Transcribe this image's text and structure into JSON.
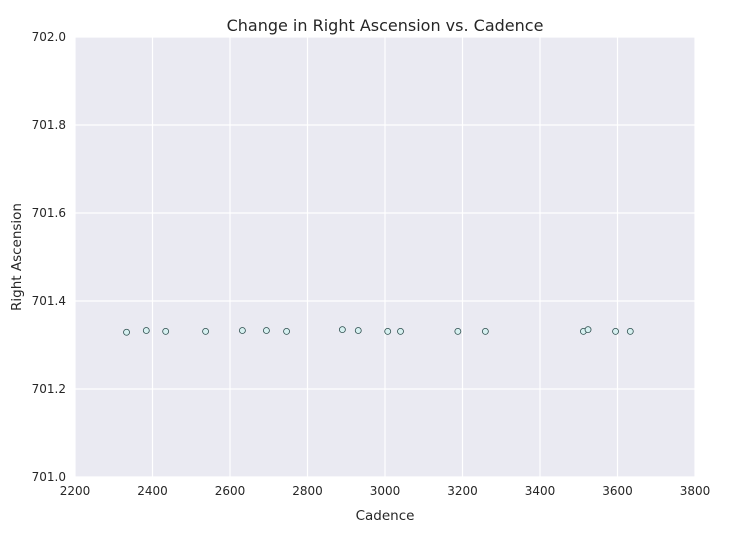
{
  "chart_data": {
    "type": "scatter",
    "title": "Change in Right Ascension vs. Cadence",
    "xlabel": "Cadence",
    "ylabel": "Right Ascension",
    "xlim": [
      2200,
      3800
    ],
    "ylim": [
      701.0,
      702.0
    ],
    "xticks": [
      "2200",
      "2400",
      "2600",
      "2800",
      "3000",
      "3200",
      "3400",
      "3600",
      "3800"
    ],
    "yticks": [
      "701.0",
      "701.2",
      "701.4",
      "701.6",
      "701.8",
      "702.0"
    ],
    "grid": true,
    "point_color": "#d6f0f0",
    "point_edge_color": "#2f4f4f",
    "background_color": "#eaeaf2",
    "points": [
      {
        "x": 2333,
        "y": 701.329
      },
      {
        "x": 2384,
        "y": 701.333
      },
      {
        "x": 2434,
        "y": 701.331
      },
      {
        "x": 2537,
        "y": 701.331
      },
      {
        "x": 2632,
        "y": 701.333
      },
      {
        "x": 2694,
        "y": 701.333
      },
      {
        "x": 2746,
        "y": 701.331
      },
      {
        "x": 2890,
        "y": 701.335
      },
      {
        "x": 2931,
        "y": 701.333
      },
      {
        "x": 3007,
        "y": 701.331
      },
      {
        "x": 3040,
        "y": 701.331
      },
      {
        "x": 3188,
        "y": 701.331
      },
      {
        "x": 3259,
        "y": 701.331
      },
      {
        "x": 3512,
        "y": 701.331
      },
      {
        "x": 3524,
        "y": 701.335
      },
      {
        "x": 3595,
        "y": 701.331
      },
      {
        "x": 3633,
        "y": 701.331
      }
    ]
  }
}
